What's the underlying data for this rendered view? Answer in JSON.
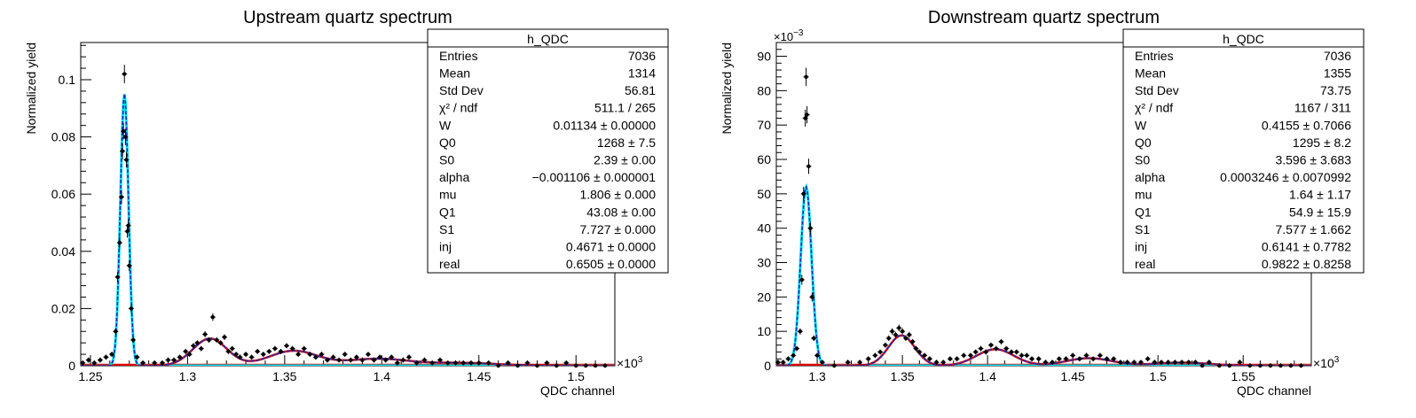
{
  "chart_data": [
    {
      "type": "scatter",
      "title": "Upstream quartz spectrum",
      "xlabel": "QDC channel",
      "ylabel": "Normalized yield",
      "x_multiplier": "×10",
      "x_multiplier_exp": "3",
      "y_multiplier": "",
      "y_multiplier_exp": "",
      "xlim": [
        1.245,
        1.52
      ],
      "ylim": [
        0,
        0.113
      ],
      "x_ticks": [
        1.25,
        1.3,
        1.35,
        1.4,
        1.45,
        1.5
      ],
      "x_tick_labels": [
        "1.25",
        "1.3",
        "1.35",
        "1.4",
        "1.45",
        "1.5"
      ],
      "y_ticks": [
        0,
        0.02,
        0.04,
        0.06,
        0.08,
        0.1
      ],
      "y_tick_labels": [
        "0",
        "0.02",
        "0.04",
        "0.06",
        "0.08",
        "0.1"
      ],
      "stats": {
        "name": "h_QDC",
        "rows": [
          {
            "label": "Entries",
            "value": "7036"
          },
          {
            "label": "Mean",
            "value": "1314"
          },
          {
            "label": "Std Dev",
            "value": "56.81"
          },
          {
            "label": "χ² / ndf",
            "value": "511.1 / 265"
          },
          {
            "label": "W",
            "value": "0.01134 ± 0.00000"
          },
          {
            "label": "Q0",
            "value": "1268 ± 7.5"
          },
          {
            "label": "S0",
            "value": "2.39 ± 0.00"
          },
          {
            "label": "alpha",
            "value": "−0.001106 ± 0.000001"
          },
          {
            "label": "mu",
            "value": "1.806 ± 0.000"
          },
          {
            "label": "Q1",
            "value": "43.08 ± 0.00"
          },
          {
            "label": "S1",
            "value": "7.727 ± 0.000"
          },
          {
            "label": "inj",
            "value": "0.4671 ± 0.0000"
          },
          {
            "label": "real",
            "value": "0.6505 ± 0.0000"
          }
        ]
      },
      "points": [
        [
          1.246,
          0.001
        ],
        [
          1.249,
          0.002
        ],
        [
          1.252,
          0.001
        ],
        [
          1.255,
          0.002
        ],
        [
          1.258,
          0.003
        ],
        [
          1.261,
          0.004
        ],
        [
          1.263,
          0.012
        ],
        [
          1.264,
          0.031
        ],
        [
          1.265,
          0.043
        ],
        [
          1.266,
          0.059
        ],
        [
          1.2665,
          0.075
        ],
        [
          1.267,
          0.082
        ],
        [
          1.2675,
          0.102
        ],
        [
          1.268,
          0.08
        ],
        [
          1.2685,
          0.072
        ],
        [
          1.269,
          0.047
        ],
        [
          1.2695,
          0.049
        ],
        [
          1.27,
          0.035
        ],
        [
          1.271,
          0.02
        ],
        [
          1.272,
          0.009
        ],
        [
          1.274,
          0.003
        ],
        [
          1.277,
          0.001
        ],
        [
          1.283,
          0.001
        ],
        [
          1.287,
          0.001
        ],
        [
          1.29,
          0.002
        ],
        [
          1.293,
          0.002
        ],
        [
          1.296,
          0.003
        ],
        [
          1.299,
          0.005
        ],
        [
          1.301,
          0.004
        ],
        [
          1.303,
          0.007
        ],
        [
          1.305,
          0.008
        ],
        [
          1.307,
          0.006
        ],
        [
          1.309,
          0.011
        ],
        [
          1.311,
          0.009
        ],
        [
          1.313,
          0.017
        ],
        [
          1.315,
          0.009
        ],
        [
          1.317,
          0.008
        ],
        [
          1.319,
          0.01
        ],
        [
          1.321,
          0.005
        ],
        [
          1.323,
          0.006
        ],
        [
          1.325,
          0.004
        ],
        [
          1.327,
          0.003
        ],
        [
          1.33,
          0.004
        ],
        [
          1.333,
          0.003
        ],
        [
          1.336,
          0.005
        ],
        [
          1.339,
          0.004
        ],
        [
          1.342,
          0.005
        ],
        [
          1.345,
          0.006
        ],
        [
          1.348,
          0.005
        ],
        [
          1.351,
          0.007
        ],
        [
          1.354,
          0.006
        ],
        [
          1.357,
          0.004
        ],
        [
          1.36,
          0.006
        ],
        [
          1.363,
          0.004
        ],
        [
          1.366,
          0.003
        ],
        [
          1.369,
          0.004
        ],
        [
          1.372,
          0.002
        ],
        [
          1.375,
          0.003
        ],
        [
          1.378,
          0.002
        ],
        [
          1.381,
          0.004
        ],
        [
          1.384,
          0.002
        ],
        [
          1.387,
          0.003
        ],
        [
          1.39,
          0.002
        ],
        [
          1.393,
          0.004
        ],
        [
          1.396,
          0.002
        ],
        [
          1.399,
          0.003
        ],
        [
          1.402,
          0.002
        ],
        [
          1.405,
          0.003
        ],
        [
          1.408,
          0.001
        ],
        [
          1.411,
          0.002
        ],
        [
          1.414,
          0.003
        ],
        [
          1.418,
          0.001
        ],
        [
          1.422,
          0.002
        ],
        [
          1.426,
          0.001
        ],
        [
          1.43,
          0.002
        ],
        [
          1.434,
          0.001
        ],
        [
          1.438,
          0.001
        ],
        [
          1.442,
          0.001
        ],
        [
          1.446,
          0.001
        ],
        [
          1.45,
          0.001
        ],
        [
          1.455,
          0.001
        ],
        [
          1.46,
          0.0
        ],
        [
          1.465,
          0.001
        ],
        [
          1.47,
          0.0
        ],
        [
          1.475,
          0.001
        ],
        [
          1.48,
          0.0
        ],
        [
          1.485,
          0.001
        ],
        [
          1.49,
          0.0
        ],
        [
          1.495,
          0.001
        ],
        [
          1.5,
          0.0
        ],
        [
          1.505,
          0.0
        ],
        [
          1.51,
          0.0
        ],
        [
          1.515,
          0.0
        ]
      ],
      "ped": {
        "mu": 1.2675,
        "sigma": 0.0021,
        "amp": 0.095
      },
      "peaks": [
        {
          "mu": 1.3115,
          "sigma": 0.0088,
          "amp": 0.0095
        },
        {
          "mu": 1.3545,
          "sigma": 0.0125,
          "amp": 0.0052
        },
        {
          "mu": 1.3975,
          "sigma": 0.0155,
          "amp": 0.0024
        },
        {
          "mu": 1.4405,
          "sigma": 0.0185,
          "amp": 0.001
        }
      ]
    },
    {
      "type": "scatter",
      "title": "Downstream quartz spectrum",
      "xlabel": "QDC channel",
      "ylabel": "Normalized yield",
      "x_multiplier": "×10",
      "x_multiplier_exp": "3",
      "y_multiplier": "×10",
      "y_multiplier_exp": "−3",
      "xlim": [
        1.276,
        1.59
      ],
      "ylim": [
        0,
        0.094
      ],
      "x_ticks": [
        1.3,
        1.35,
        1.4,
        1.45,
        1.5,
        1.55
      ],
      "x_tick_labels": [
        "1.3",
        "1.35",
        "1.4",
        "1.45",
        "1.5",
        "1.55"
      ],
      "y_ticks": [
        0,
        0.01,
        0.02,
        0.03,
        0.04,
        0.05,
        0.06,
        0.07,
        0.08,
        0.09
      ],
      "y_tick_labels": [
        "0",
        "10",
        "20",
        "30",
        "40",
        "50",
        "60",
        "70",
        "80",
        "90"
      ],
      "stats": {
        "name": "h_QDC",
        "rows": [
          {
            "label": "Entries",
            "value": "7036"
          },
          {
            "label": "Mean",
            "value": "1355"
          },
          {
            "label": "Std Dev",
            "value": "73.75"
          },
          {
            "label": "χ² / ndf",
            "value": "1167 / 311"
          },
          {
            "label": "W",
            "value": "0.4155 ± 0.7066"
          },
          {
            "label": "Q0",
            "value": "1295 ± 8.2"
          },
          {
            "label": "S0",
            "value": "3.596 ± 3.683"
          },
          {
            "label": "alpha",
            "value": "0.0003246 ± 0.0070992"
          },
          {
            "label": "mu",
            "value": "1.64 ± 1.17"
          },
          {
            "label": "Q1",
            "value": "54.9 ± 15.9"
          },
          {
            "label": "S1",
            "value": "7.577 ± 1.662"
          },
          {
            "label": "inj",
            "value": "0.6141 ± 0.7782"
          },
          {
            "label": "real",
            "value": "0.9822 ± 0.8258"
          }
        ]
      },
      "points": [
        [
          1.277,
          0.001
        ],
        [
          1.28,
          0.001
        ],
        [
          1.283,
          0.002
        ],
        [
          1.286,
          0.003
        ],
        [
          1.288,
          0.005
        ],
        [
          1.29,
          0.01
        ],
        [
          1.291,
          0.025
        ],
        [
          1.292,
          0.05
        ],
        [
          1.293,
          0.072
        ],
        [
          1.2935,
          0.084
        ],
        [
          1.294,
          0.073
        ],
        [
          1.295,
          0.058
        ],
        [
          1.296,
          0.04
        ],
        [
          1.297,
          0.02
        ],
        [
          1.298,
          0.008
        ],
        [
          1.3,
          0.003
        ],
        [
          1.303,
          0.001
        ],
        [
          1.31,
          0.0
        ],
        [
          1.318,
          0.001
        ],
        [
          1.325,
          0.001
        ],
        [
          1.33,
          0.002
        ],
        [
          1.334,
          0.003
        ],
        [
          1.337,
          0.004
        ],
        [
          1.34,
          0.006
        ],
        [
          1.342,
          0.008
        ],
        [
          1.344,
          0.01
        ],
        [
          1.346,
          0.009
        ],
        [
          1.348,
          0.011
        ],
        [
          1.35,
          0.01
        ],
        [
          1.352,
          0.008
        ],
        [
          1.354,
          0.009
        ],
        [
          1.356,
          0.007
        ],
        [
          1.358,
          0.005
        ],
        [
          1.36,
          0.004
        ],
        [
          1.363,
          0.003
        ],
        [
          1.366,
          0.002
        ],
        [
          1.37,
          0.001
        ],
        [
          1.374,
          0.001
        ],
        [
          1.378,
          0.002
        ],
        [
          1.382,
          0.002
        ],
        [
          1.386,
          0.003
        ],
        [
          1.39,
          0.003
        ],
        [
          1.393,
          0.004
        ],
        [
          1.396,
          0.005
        ],
        [
          1.399,
          0.004
        ],
        [
          1.402,
          0.006
        ],
        [
          1.405,
          0.005
        ],
        [
          1.408,
          0.007
        ],
        [
          1.411,
          0.005
        ],
        [
          1.414,
          0.004
        ],
        [
          1.417,
          0.004
        ],
        [
          1.42,
          0.003
        ],
        [
          1.423,
          0.003
        ],
        [
          1.426,
          0.002
        ],
        [
          1.43,
          0.002
        ],
        [
          1.434,
          0.001
        ],
        [
          1.438,
          0.001
        ],
        [
          1.442,
          0.002
        ],
        [
          1.446,
          0.002
        ],
        [
          1.45,
          0.003
        ],
        [
          1.454,
          0.002
        ],
        [
          1.458,
          0.003
        ],
        [
          1.462,
          0.002
        ],
        [
          1.466,
          0.003
        ],
        [
          1.47,
          0.002
        ],
        [
          1.474,
          0.002
        ],
        [
          1.478,
          0.001
        ],
        [
          1.482,
          0.001
        ],
        [
          1.486,
          0.001
        ],
        [
          1.49,
          0.001
        ],
        [
          1.494,
          0.002
        ],
        [
          1.498,
          0.001
        ],
        [
          1.502,
          0.001
        ],
        [
          1.506,
          0.001
        ],
        [
          1.51,
          0.001
        ],
        [
          1.514,
          0.001
        ],
        [
          1.518,
          0.001
        ],
        [
          1.522,
          0.001
        ],
        [
          1.526,
          0.0
        ],
        [
          1.53,
          0.001
        ],
        [
          1.536,
          0.0
        ],
        [
          1.542,
          0.0
        ],
        [
          1.548,
          0.001
        ],
        [
          1.554,
          0.0
        ],
        [
          1.56,
          0.0
        ],
        [
          1.566,
          0.0
        ],
        [
          1.572,
          0.0
        ],
        [
          1.578,
          0.0
        ],
        [
          1.584,
          0.0
        ]
      ],
      "ped": {
        "mu": 1.2935,
        "sigma": 0.0032,
        "amp": 0.052
      },
      "peaks": [
        {
          "mu": 1.3495,
          "sigma": 0.0078,
          "amp": 0.0088
        },
        {
          "mu": 1.4045,
          "sigma": 0.011,
          "amp": 0.0048
        },
        {
          "mu": 1.4595,
          "sigma": 0.0135,
          "amp": 0.0022
        },
        {
          "mu": 1.5145,
          "sigma": 0.016,
          "amp": 0.0009
        }
      ]
    }
  ]
}
